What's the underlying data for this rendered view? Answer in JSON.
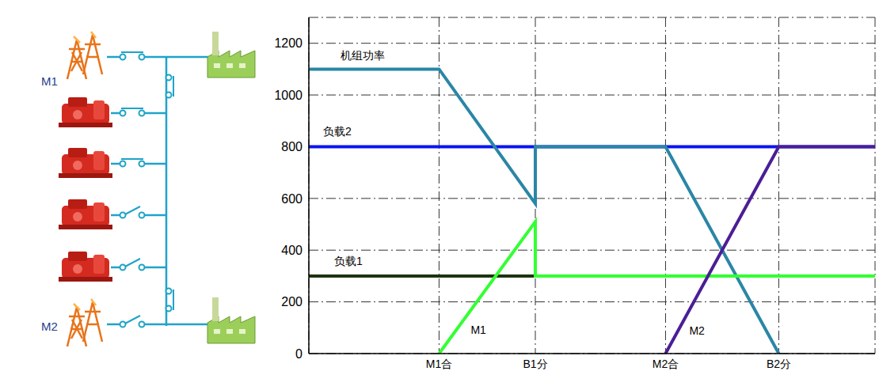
{
  "diagram": {
    "labels": [
      "M1",
      "M2"
    ]
  },
  "chart_data": {
    "type": "line",
    "xlim": [
      0,
      100
    ],
    "xticks": [
      {
        "value": 23,
        "label": "M1合"
      },
      {
        "value": 40,
        "label": "B1分"
      },
      {
        "value": 63,
        "label": "M2合"
      },
      {
        "value": 83,
        "label": "B2分"
      }
    ],
    "ylim": [
      0,
      1300
    ],
    "yticks": [
      0,
      200,
      400,
      600,
      800,
      1000,
      1200
    ],
    "grid": true,
    "series": [
      {
        "name": "负载2",
        "color": "#0a14f0",
        "x": [
          0,
          100
        ],
        "values": [
          800,
          800
        ]
      },
      {
        "name": "负载1",
        "color": "#1f3311",
        "x": [
          0,
          40
        ],
        "values": [
          300,
          300
        ]
      },
      {
        "name": "机组功率",
        "color": "#2a86a6",
        "x": [
          0,
          23,
          40,
          40,
          63,
          83
        ],
        "values": [
          1100,
          1100,
          580,
          800,
          800,
          0
        ]
      },
      {
        "name": "M1",
        "color": "#33ff33",
        "x": [
          23,
          40,
          40,
          100
        ],
        "values": [
          0,
          510,
          300,
          300
        ]
      },
      {
        "name": "M2",
        "color": "#4b1e96",
        "x": [
          63,
          83,
          100
        ],
        "values": [
          0,
          800,
          800
        ]
      }
    ]
  }
}
